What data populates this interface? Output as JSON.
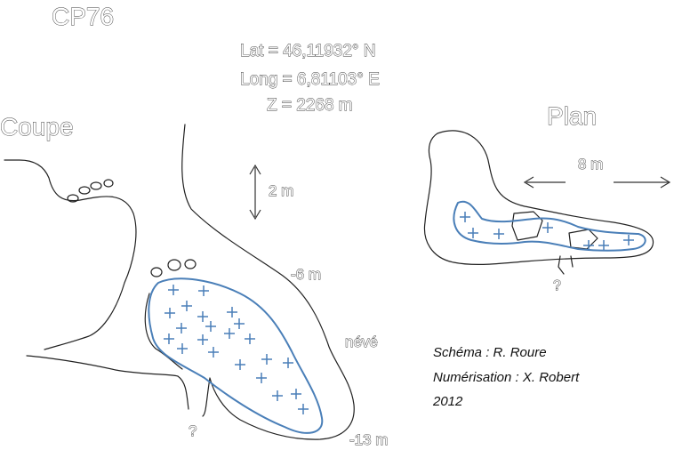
{
  "title": "CP76",
  "coords": {
    "lat": "Lat = 46,11932° N",
    "long": "Long = 6,81103° E",
    "alt": "Z = 2268 m"
  },
  "section": {
    "label": "Coupe",
    "scale_label": "2 m",
    "depth_label_1": "-6 m",
    "depth_label_2": "-13 m",
    "neve_label": "névé",
    "question_mark": "?"
  },
  "plan": {
    "label": "Plan",
    "scale_label": "8 m",
    "question_mark": "?"
  },
  "credits": {
    "schema": "Schéma : R. Roure",
    "digitization": "Numérisation : X. Robert",
    "year": "2012"
  },
  "colors": {
    "snow": "#4a7fb8",
    "cave_wall": "#222222",
    "background": "#ffffff"
  }
}
